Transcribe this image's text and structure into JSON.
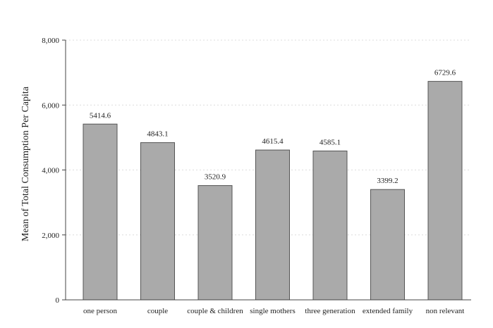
{
  "chart_data": {
    "type": "bar",
    "title": "",
    "xlabel": "",
    "ylabel": "Mean of Total Consumption Per Capita",
    "ylim": [
      0,
      8000
    ],
    "yticks": [
      0,
      2000,
      4000,
      6000,
      8000
    ],
    "ytick_labels": [
      "0",
      "2,000",
      "4,000",
      "6,000",
      "8,000"
    ],
    "grid": true,
    "categories": [
      "one person",
      "couple",
      "couple & children",
      "single mothers",
      "three generation",
      "extended family",
      "non relevant"
    ],
    "values": [
      5414.6,
      4843.1,
      3520.9,
      4615.4,
      4585.1,
      3399.2,
      6729.6
    ],
    "data_labels": [
      "5414.6",
      "4843.1",
      "3520.9",
      "4615.4",
      "4585.1",
      "3399.2",
      "6729.6"
    ],
    "bar_color": "#aaaaaa"
  }
}
